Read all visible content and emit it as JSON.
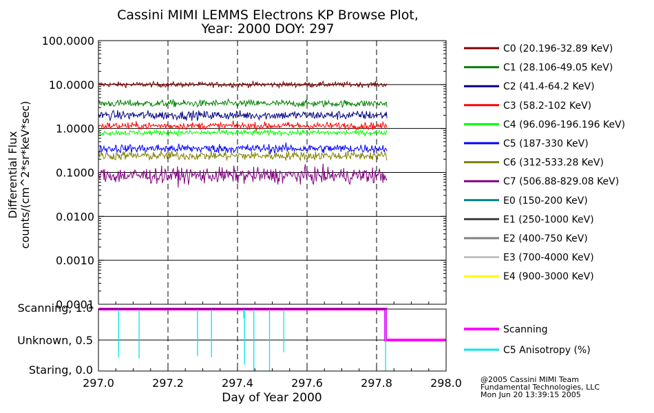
{
  "chart_data": [
    {
      "type": "line",
      "title_line1": "Cassini MIMI LEMMS Electrons KP Browse Plot,",
      "title_line2": "Year: 2000 DOY: 297",
      "ylabel_line1": "Differential Flux",
      "ylabel_line2": "counts/(cm^2*sr*keV*sec)",
      "yscale": "log",
      "ylim": [
        0.0001,
        100
      ],
      "xlim": [
        297.0,
        298.0
      ],
      "ytick_labels": [
        "100.0000",
        "10.0000",
        "1.0000",
        "0.1000",
        "0.0100",
        "0.0010",
        "0.0001"
      ],
      "ytick_values": [
        100,
        10,
        1,
        0.1,
        0.01,
        0.001,
        0.0001
      ],
      "grid": true,
      "legend_position": "right",
      "series": [
        {
          "name": "C0 (20.196-32.89 KeV)",
          "color": "#800000",
          "x_range": [
            297.0,
            297.83
          ],
          "level": 10.0,
          "noise_decades": 0.03
        },
        {
          "name": "C1 (28.106-49.05 KeV)",
          "color": "#008000",
          "x_range": [
            297.0,
            297.83
          ],
          "level": 3.7,
          "noise_decades": 0.04
        },
        {
          "name": "C2 (41.4-64.2 KeV)",
          "color": "#000080",
          "x_range": [
            297.0,
            297.83
          ],
          "level": 2.0,
          "noise_decades": 0.05
        },
        {
          "name": "C3 (58.2-102 KeV)",
          "color": "#ff0000",
          "x_range": [
            297.0,
            297.83
          ],
          "level": 1.15,
          "noise_decades": 0.04
        },
        {
          "name": "C4 (96.096-196.196 KeV)",
          "color": "#00ff00",
          "x_range": [
            297.0,
            297.83
          ],
          "level": 0.8,
          "noise_decades": 0.03
        },
        {
          "name": "C5 (187-330 KeV)",
          "color": "#0000ff",
          "x_range": [
            297.0,
            297.83
          ],
          "level": 0.35,
          "noise_decades": 0.05
        },
        {
          "name": "C6 (312-533.28 KeV)",
          "color": "#808000",
          "x_range": [
            297.0,
            297.83
          ],
          "level": 0.24,
          "noise_decades": 0.05
        },
        {
          "name": "C7 (506.88-829.08 KeV)",
          "color": "#800080",
          "x_range": [
            297.0,
            297.83
          ],
          "level": 0.085,
          "noise_decades": 0.09
        },
        {
          "name": "E0 (150-200 KeV)",
          "color": "#008080"
        },
        {
          "name": "E1 (250-1000 KeV)",
          "color": "#404040"
        },
        {
          "name": "E2 (400-750 KeV)",
          "color": "#808080"
        },
        {
          "name": "E3 (700-4000 KeV)",
          "color": "#c0c0c0"
        },
        {
          "name": "E4 (900-3000 KeV)",
          "color": "#ffff00"
        }
      ]
    },
    {
      "type": "line",
      "xlabel": "Day of Year 2000",
      "xlim": [
        297.0,
        298.0
      ],
      "xtick_labels": [
        "297.0",
        "297.2",
        "297.4",
        "297.6",
        "297.8",
        "298.0"
      ],
      "xtick_values": [
        297.0,
        297.2,
        297.4,
        297.6,
        297.8,
        298.0
      ],
      "ylim": [
        0.0,
        1.0
      ],
      "ytick_labels": [
        "Scanning, 1.0",
        "Unknown, 0.5",
        "Staring, 0.0"
      ],
      "ytick_values": [
        1.0,
        0.5,
        0.0
      ],
      "grid": true,
      "legend_position": "right",
      "series": [
        {
          "name": "Scanning",
          "color": "#ff00ff",
          "x": [
            297.0,
            297.826,
            297.826,
            298.0
          ],
          "y": [
            1.0,
            1.0,
            0.5,
            0.5
          ]
        },
        {
          "name": "C5 Anisotropy (%)",
          "color": "#00e5ee",
          "spikes": [
            {
              "x": 297.058,
              "y": 0.22
            },
            {
              "x": 297.117,
              "y": 0.2
            },
            {
              "x": 297.285,
              "y": 0.24
            },
            {
              "x": 297.325,
              "y": 0.22
            },
            {
              "x": 297.418,
              "y": 0.85
            },
            {
              "x": 297.42,
              "y": 0.1
            },
            {
              "x": 297.447,
              "y": 0.0
            },
            {
              "x": 297.492,
              "y": 0.0
            },
            {
              "x": 297.533,
              "y": 0.3
            },
            {
              "x": 297.826,
              "y": 0.0
            }
          ]
        }
      ]
    }
  ],
  "footer": {
    "line1": "@2005 Cassini MIMI Team",
    "line2": "Fundamental Technologies, LLC",
    "line3": "Mon Jun 20 13:39:15 2005"
  }
}
